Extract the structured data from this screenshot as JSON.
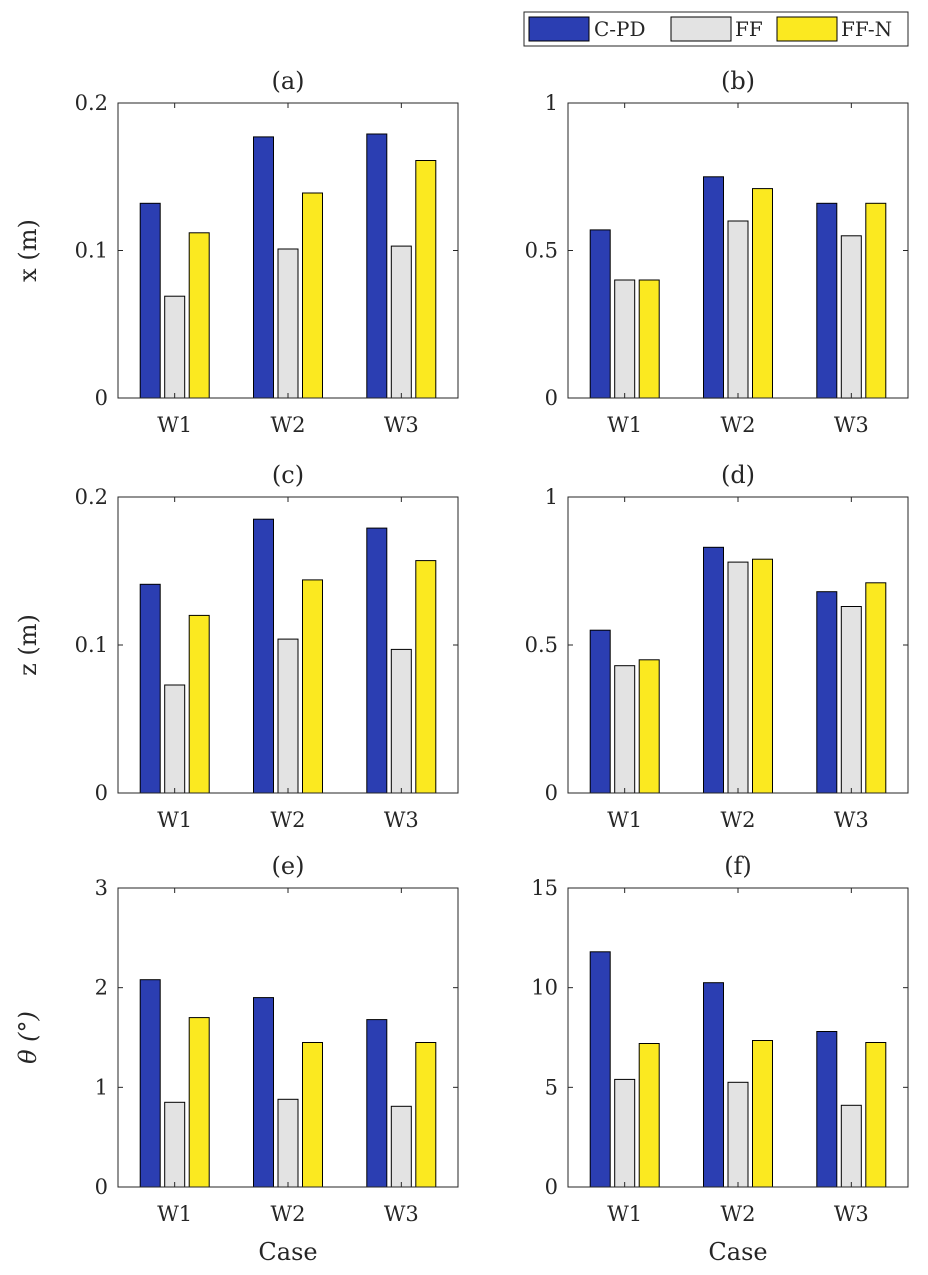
{
  "legend": [
    {
      "label": "C-PD",
      "color": "#2b3eb2"
    },
    {
      "label": "FF",
      "color": "#e3e3e3"
    },
    {
      "label": "FF-N",
      "color": "#fbe920"
    }
  ],
  "row_labels": [
    "x (m)",
    "z (m)",
    "θ (°)"
  ],
  "chart_data": [
    {
      "type": "bar",
      "title": "(a)",
      "categories": [
        "W1",
        "W2",
        "W3"
      ],
      "ylim": [
        0,
        0.2
      ],
      "yticks": [
        0,
        0.1,
        0.2
      ],
      "ytick_labels": [
        "0",
        "0.1",
        "0.2"
      ],
      "ylabel": "x (m)",
      "xlabel": "",
      "series": [
        {
          "name": "C-PD",
          "values": [
            0.132,
            0.177,
            0.179
          ]
        },
        {
          "name": "FF",
          "values": [
            0.069,
            0.101,
            0.103
          ]
        },
        {
          "name": "FF-N",
          "values": [
            0.112,
            0.139,
            0.161
          ]
        }
      ]
    },
    {
      "type": "bar",
      "title": "(b)",
      "categories": [
        "W1",
        "W2",
        "W3"
      ],
      "ylim": [
        0,
        1
      ],
      "yticks": [
        0,
        0.5,
        1
      ],
      "ytick_labels": [
        "0",
        "0.5",
        "1"
      ],
      "ylabel": "",
      "xlabel": "",
      "series": [
        {
          "name": "C-PD",
          "values": [
            0.57,
            0.75,
            0.66
          ]
        },
        {
          "name": "FF",
          "values": [
            0.4,
            0.6,
            0.55
          ]
        },
        {
          "name": "FF-N",
          "values": [
            0.4,
            0.71,
            0.66
          ]
        }
      ]
    },
    {
      "type": "bar",
      "title": "(c)",
      "categories": [
        "W1",
        "W2",
        "W3"
      ],
      "ylim": [
        0,
        0.2
      ],
      "yticks": [
        0,
        0.1,
        0.2
      ],
      "ytick_labels": [
        "0",
        "0.1",
        "0.2"
      ],
      "ylabel": "z (m)",
      "xlabel": "",
      "series": [
        {
          "name": "C-PD",
          "values": [
            0.141,
            0.185,
            0.179
          ]
        },
        {
          "name": "FF",
          "values": [
            0.073,
            0.104,
            0.097
          ]
        },
        {
          "name": "FF-N",
          "values": [
            0.12,
            0.144,
            0.157
          ]
        }
      ]
    },
    {
      "type": "bar",
      "title": "(d)",
      "categories": [
        "W1",
        "W2",
        "W3"
      ],
      "ylim": [
        0,
        1
      ],
      "yticks": [
        0,
        0.5,
        1
      ],
      "ytick_labels": [
        "0",
        "0.5",
        "1"
      ],
      "ylabel": "",
      "xlabel": "",
      "series": [
        {
          "name": "C-PD",
          "values": [
            0.55,
            0.83,
            0.68
          ]
        },
        {
          "name": "FF",
          "values": [
            0.43,
            0.78,
            0.63
          ]
        },
        {
          "name": "FF-N",
          "values": [
            0.45,
            0.79,
            0.71
          ]
        }
      ]
    },
    {
      "type": "bar",
      "title": "(e)",
      "categories": [
        "W1",
        "W2",
        "W3"
      ],
      "ylim": [
        0,
        3
      ],
      "yticks": [
        0,
        1,
        2,
        3
      ],
      "ytick_labels": [
        "0",
        "1",
        "2",
        "3"
      ],
      "ylabel": "θ (°)",
      "xlabel": "Case",
      "series": [
        {
          "name": "C-PD",
          "values": [
            2.08,
            1.9,
            1.68
          ]
        },
        {
          "name": "FF",
          "values": [
            0.85,
            0.88,
            0.81
          ]
        },
        {
          "name": "FF-N",
          "values": [
            1.7,
            1.45,
            1.45
          ]
        }
      ]
    },
    {
      "type": "bar",
      "title": "(f)",
      "categories": [
        "W1",
        "W2",
        "W3"
      ],
      "ylim": [
        0,
        15
      ],
      "yticks": [
        0,
        5,
        10,
        15
      ],
      "ytick_labels": [
        "0",
        "5",
        "10",
        "15"
      ],
      "ylabel": "",
      "xlabel": "Case",
      "series": [
        {
          "name": "C-PD",
          "values": [
            11.8,
            10.25,
            7.8
          ]
        },
        {
          "name": "FF",
          "values": [
            5.4,
            5.25,
            4.1
          ]
        },
        {
          "name": "FF-N",
          "values": [
            7.2,
            7.35,
            7.25
          ]
        }
      ]
    }
  ]
}
